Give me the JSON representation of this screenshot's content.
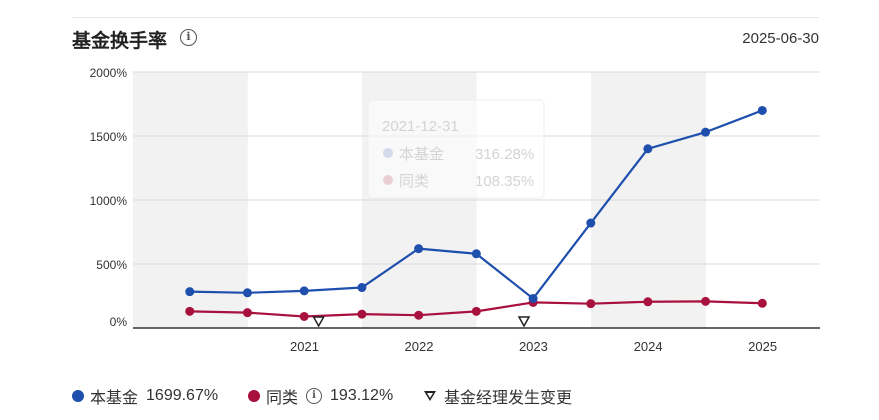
{
  "header": {
    "title": "基金换手率",
    "date": "2025-06-30"
  },
  "colors": {
    "fund": "#1f4fad",
    "peer": "#a8103e",
    "band": "#f2f2f2"
  },
  "legend": {
    "fund_label": "本基金",
    "fund_value": "1699.67%",
    "peer_label": "同类",
    "peer_value": "193.12%",
    "manager_change_label": "基金经理发生变更"
  },
  "tooltip": {
    "date": "2021-12-31",
    "fund_label": "本基金",
    "fund_value": "316.28%",
    "peer_label": "同类",
    "peer_value": "108.35%"
  },
  "chart_data": {
    "type": "line",
    "x": [
      "2020-06-30",
      "2020-12-31",
      "2021-06-30",
      "2021-12-31",
      "2022-06-30",
      "2022-12-31",
      "2023-06-30",
      "2023-12-31",
      "2024-06-30",
      "2024-12-31",
      "2025-06-30"
    ],
    "series": [
      {
        "name": "本基金",
        "values": [
          284,
          275,
          290,
          316.28,
          620,
          580,
          230,
          820,
          1400,
          1530,
          1699.67
        ]
      },
      {
        "name": "同类",
        "values": [
          130,
          120,
          90,
          108.35,
          100,
          130,
          200,
          190,
          205,
          208,
          193.12
        ]
      }
    ],
    "manager_changes": [
      "2021-08-15",
      "2023-06-01"
    ],
    "x_tick_labels": [
      "2021",
      "2022",
      "2023",
      "2024",
      "2025"
    ],
    "y_tick_labels": [
      "0%",
      "500%",
      "1000%",
      "1500%",
      "2000%"
    ],
    "ylim": [
      0,
      2000
    ],
    "grid": true
  }
}
